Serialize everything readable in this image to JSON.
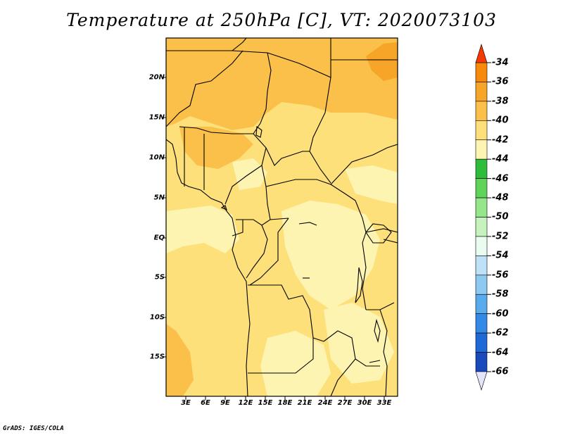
{
  "title": "Temperature at 250hPa [C], VT: 2020073103",
  "credit": "GrADS: IGES/COLA",
  "map": {
    "lat_labels": [
      "20N",
      "15N",
      "10N",
      "5N",
      "EQ",
      "5S",
      "10S",
      "15S"
    ],
    "lon_labels": [
      "3E",
      "6E",
      "9E",
      "12E",
      "15E",
      "18E",
      "21E",
      "24E",
      "27E",
      "30E",
      "33E"
    ],
    "field_colors": {
      "level_minus36_to_minus34": "#f27a02",
      "level_minus38_to_minus36": "#f6a528",
      "level_minus40_to_minus38": "#fbc04a",
      "level_minus42_to_minus40": "#fde07a",
      "level_minus44_to_minus42": "#fef4b2"
    }
  },
  "colorbar": {
    "labels": [
      "-34",
      "-36",
      "-38",
      "-40",
      "-42",
      "-44",
      "-46",
      "-48",
      "-50",
      "-52",
      "-54",
      "-56",
      "-58",
      "-60",
      "-62",
      "-64",
      "-66"
    ],
    "colors": [
      "#f25a02",
      "#f7890c",
      "#f6a528",
      "#fbc04a",
      "#fde07a",
      "#fef4b2",
      "#2ebd3a",
      "#5fd35a",
      "#95e58a",
      "#c6f3bd",
      "#eafbf0",
      "#bfe1f7",
      "#8ec9f2",
      "#5aaaee",
      "#3589e6",
      "#1f69d7",
      "#1a49bd",
      "#0e2d8f"
    ],
    "upper_arrow_color": "#f23a02",
    "lower_arrow_color": "#e4e4fa"
  }
}
